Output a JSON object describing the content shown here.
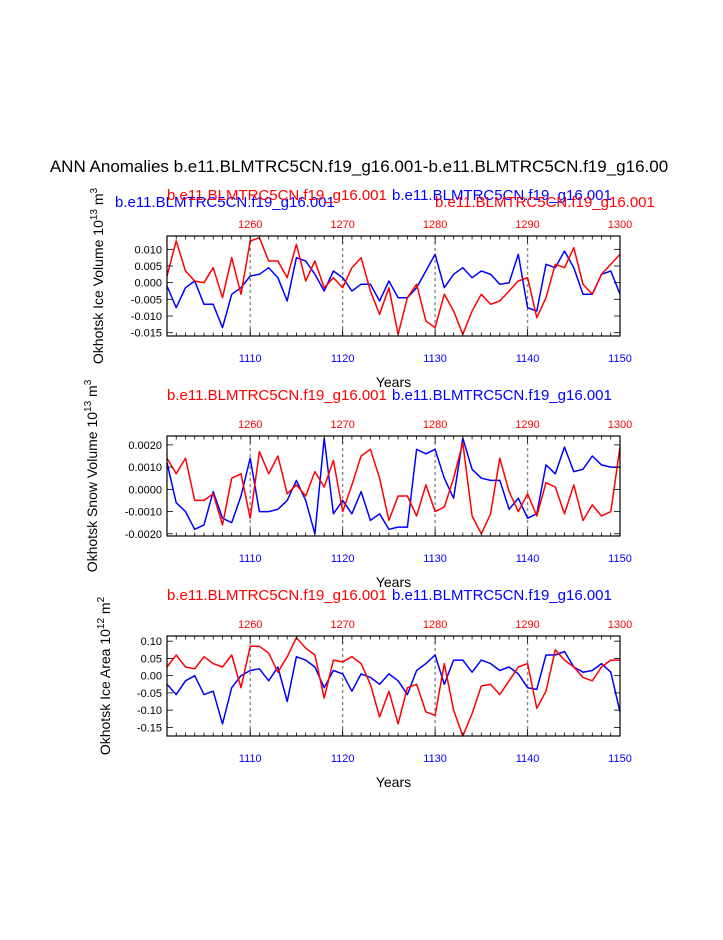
{
  "title": "ANN Anomalies b.e11.BLMTRC5CN.f19_g16.001-b.e11.BLMTRC5CN.f19_g16.00",
  "colors": {
    "blue": "#0000ff",
    "red": "#ff0000",
    "black": "#000000",
    "grid": "#888888"
  },
  "chart_data": [
    {
      "type": "line",
      "id": "ice-volume",
      "ylabel_main": "Okhotsk Ice Volume 10",
      "ylabel_exp": "13",
      "ylabel_unit": " m",
      "ylabel_unit_exp": "3",
      "xlabel": "Years",
      "top_left_label": "b.e11.BLMTRC5CN.f19_g16.001",
      "top_center_label": "b.e11.BLMTRC5CN.f19_g16.001",
      "top_right_label": "b.e11.BLMTRC5CN.f19_g16.001",
      "top_right_label_2": "b.e11.BLMTRC5CN.f19_g16.001",
      "x_bottom_range": [
        1101,
        1150
      ],
      "x_bottom_ticks": [
        "1110",
        "1120",
        "1130",
        "1140",
        "1150"
      ],
      "x_top_range": [
        1251,
        1300
      ],
      "x_top_ticks": [
        "1260",
        "1270",
        "1280",
        "1290",
        "1300"
      ],
      "ylim": [
        -0.016,
        0.014
      ],
      "yticks": [
        "0.010",
        "0.005",
        "0.000",
        "-0.005",
        "-0.010",
        "-0.015"
      ],
      "ytick_values": [
        0.01,
        0.005,
        0.0,
        -0.005,
        -0.01,
        -0.015
      ],
      "grid_x": [
        1110,
        1120,
        1130,
        1140
      ],
      "series": [
        {
          "name": "b.e11.BLMTRC5CN.f19_g16.001",
          "color": "blue",
          "values": [
            -0.001,
            -0.0075,
            -0.0015,
            0.0005,
            -0.0065,
            -0.0065,
            -0.0135,
            -0.0035,
            -0.0015,
            0.002,
            0.0025,
            0.0045,
            0.0015,
            -0.0055,
            0.0075,
            0.0065,
            0.0025,
            -0.0025,
            0.0035,
            0.0015,
            -0.0025,
            -0.0005,
            -0.0005,
            -0.0055,
            0.0005,
            -0.0045,
            -0.0045,
            -0.0015,
            0.0035,
            0.0085,
            -0.0015,
            0.0025,
            0.0045,
            0.0015,
            0.0035,
            0.0025,
            -0.0005,
            0.0,
            0.0085,
            -0.0075,
            -0.0085,
            0.0055,
            0.0045,
            0.0095,
            0.0045,
            -0.0035,
            -0.0035,
            0.0025,
            0.0035,
            -0.0035
          ]
        },
        {
          "name": "b.e11.BLMTRC5CN.f19_g16.001",
          "color": "red",
          "values": [
            0.002,
            0.0125,
            0.0035,
            0.0005,
            0.0,
            0.0045,
            -0.0045,
            0.0075,
            -0.0035,
            0.0125,
            0.0135,
            0.0065,
            0.0065,
            0.0015,
            0.0115,
            0.0005,
            0.0065,
            -0.0015,
            0.0015,
            -0.0015,
            0.0045,
            0.0075,
            -0.0025,
            -0.0095,
            -0.0015,
            -0.0155,
            -0.0045,
            -0.0005,
            -0.0115,
            -0.0135,
            -0.0035,
            -0.0085,
            -0.0155,
            -0.0085,
            -0.0035,
            -0.0065,
            -0.0055,
            -0.0025,
            0.0005,
            0.0015,
            -0.0105,
            -0.0045,
            0.0055,
            0.0045,
            0.0105,
            -0.0005,
            -0.0035,
            0.0025,
            0.0055,
            0.0085
          ]
        }
      ]
    },
    {
      "type": "line",
      "id": "snow-volume",
      "ylabel_main": "Okhotsk Snow Volume 10",
      "ylabel_exp": "13",
      "ylabel_unit": " m",
      "ylabel_unit_exp": "3",
      "xlabel": "Years",
      "top_left_label": "b.e11.BLMTRC5CN.f19_g16.001",
      "top_right_label": "b.e11.BLMTRC5CN.f19_g16.001",
      "x_bottom_range": [
        1101,
        1150
      ],
      "x_bottom_ticks": [
        "1110",
        "1120",
        "1130",
        "1140",
        "1150"
      ],
      "x_top_range": [
        1251,
        1300
      ],
      "x_top_ticks": [
        "1260",
        "1270",
        "1280",
        "1290",
        "1300"
      ],
      "ylim": [
        -0.0021,
        0.0024
      ],
      "yticks": [
        "0.0020",
        "0.0010",
        "0.0000",
        "-0.0010",
        "-0.0020"
      ],
      "ytick_values": [
        0.002,
        0.001,
        0.0,
        -0.001,
        -0.002
      ],
      "grid_x": [
        1110,
        1120,
        1130,
        1140
      ],
      "series": [
        {
          "name": "b.e11.BLMTRC5CN.f19_g16.001",
          "color": "blue",
          "values": [
            0.0012,
            -0.0006,
            -0.001,
            -0.0018,
            -0.0016,
            -0.0001,
            -0.0013,
            -0.0015,
            -0.0003,
            0.0014,
            -0.001,
            -0.001,
            -0.0009,
            -0.0005,
            0.0004,
            -0.0005,
            -0.002,
            0.0023,
            -0.0011,
            -0.0005,
            -0.0011,
            -0.0001,
            -0.0014,
            -0.0011,
            -0.0018,
            -0.0017,
            -0.0017,
            0.0018,
            0.0016,
            0.0018,
            0.0005,
            -0.0004,
            0.0023,
            0.0009,
            0.0005,
            0.0004,
            0.0004,
            -0.0009,
            -0.0004,
            -0.0013,
            -0.0011,
            0.0011,
            0.0007,
            0.0019,
            0.0008,
            0.0009,
            0.0015,
            0.0011,
            0.001,
            0.001
          ]
        },
        {
          "name": "b.e11.BLMTRC5CN.f19_g16.001",
          "color": "red",
          "values": [
            0.0014,
            0.0007,
            0.0014,
            -0.0005,
            -0.0005,
            -0.0002,
            -0.0016,
            0.0005,
            0.0007,
            -0.0013,
            0.0017,
            0.0007,
            0.0015,
            -0.0002,
            0.0002,
            -0.0003,
            0.0008,
            0.0001,
            0.0013,
            -0.001,
            0.0002,
            0.0015,
            0.0018,
            0.0005,
            -0.0014,
            -0.0003,
            -0.0003,
            -0.0012,
            0.0002,
            -0.001,
            -0.0008,
            0.0005,
            0.0021,
            -0.0012,
            -0.002,
            -0.0011,
            0.0014,
            -0.0001,
            -0.001,
            -0.0002,
            -0.0012,
            0.0003,
            0.0001,
            -0.0011,
            0.0002,
            -0.0014,
            -0.0007,
            -0.0012,
            -0.001,
            0.0019
          ]
        }
      ]
    },
    {
      "type": "line",
      "id": "ice-area",
      "ylabel_main": "Okhotsk Ice Area 10",
      "ylabel_exp": "12",
      "ylabel_unit": " m",
      "ylabel_unit_exp": "2",
      "xlabel": "Years",
      "top_left_label": "b.e11.BLMTRC5CN.f19_g16.001",
      "top_right_label": "b.e11.BLMTRC5CN.f19_g16.001",
      "x_bottom_range": [
        1101,
        1150
      ],
      "x_bottom_ticks": [
        "1110",
        "1120",
        "1130",
        "1140",
        "1150"
      ],
      "x_top_range": [
        1251,
        1300
      ],
      "x_top_ticks": [
        "1260",
        "1270",
        "1280",
        "1290",
        "1300"
      ],
      "ylim": [
        -0.175,
        0.115
      ],
      "yticks": [
        "0.10",
        "0.05",
        "0.00",
        "-0.05",
        "-0.10",
        "-0.15"
      ],
      "ytick_values": [
        0.1,
        0.05,
        0.0,
        -0.05,
        -0.1,
        -0.15
      ],
      "grid_x": [
        1110,
        1120,
        1130,
        1140
      ],
      "series": [
        {
          "name": "b.e11.BLMTRC5CN.f19_g16.001",
          "color": "blue",
          "values": [
            -0.025,
            -0.055,
            -0.015,
            0.0,
            -0.055,
            -0.045,
            -0.14,
            -0.035,
            0.0,
            0.015,
            0.02,
            -0.015,
            0.025,
            -0.075,
            0.055,
            0.045,
            0.025,
            -0.035,
            0.015,
            0.005,
            -0.045,
            0.005,
            -0.005,
            -0.025,
            0.005,
            -0.015,
            -0.055,
            0.015,
            0.035,
            0.06,
            -0.025,
            0.045,
            0.045,
            0.01,
            0.045,
            0.035,
            0.015,
            0.025,
            0.005,
            -0.035,
            -0.04,
            0.06,
            0.06,
            0.07,
            0.025,
            0.01,
            0.015,
            0.035,
            0.01,
            -0.105
          ]
        },
        {
          "name": "b.e11.BLMTRC5CN.f19_g16.001",
          "color": "red",
          "values": [
            0.025,
            0.06,
            0.025,
            0.02,
            0.055,
            0.035,
            0.025,
            0.06,
            -0.035,
            0.085,
            0.085,
            0.065,
            0.01,
            0.055,
            0.11,
            0.08,
            0.06,
            -0.065,
            0.045,
            0.04,
            0.055,
            0.035,
            -0.025,
            -0.12,
            -0.045,
            -0.14,
            -0.035,
            -0.025,
            -0.105,
            -0.115,
            0.035,
            -0.1,
            -0.175,
            -0.11,
            -0.03,
            -0.025,
            -0.055,
            -0.015,
            0.025,
            0.035,
            -0.095,
            -0.045,
            0.075,
            0.045,
            0.025,
            -0.005,
            -0.015,
            0.025,
            0.045,
            0.045
          ]
        }
      ]
    }
  ]
}
